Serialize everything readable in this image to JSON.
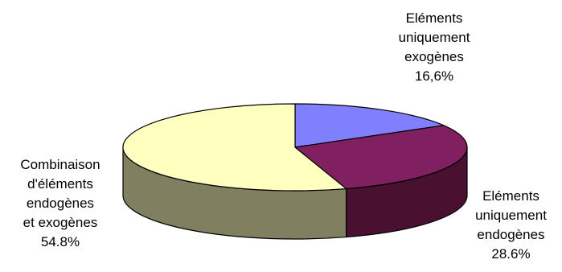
{
  "chart_data": {
    "type": "pie",
    "title": "",
    "slices": [
      {
        "key": "exo",
        "lines": [
          "Eléments",
          "uniquement",
          "exogènes",
          "16,6%"
        ],
        "value": 16.6,
        "color": "#8080ff",
        "side_color": "#4d4d99"
      },
      {
        "key": "endo",
        "lines": [
          "Eléments",
          "uniquement",
          "endogènes",
          "28.6%"
        ],
        "value": 28.6,
        "color": "#802060",
        "side_color": "#4a1030"
      },
      {
        "key": "combo",
        "lines": [
          "Combinaison",
          "d'éléments",
          "endogènes",
          "et exogènes",
          "54.8%"
        ],
        "value": 54.8,
        "color": "#ffffc0",
        "side_color": "#808060"
      }
    ],
    "style": "3d-tilted-pie",
    "legend": "none"
  }
}
